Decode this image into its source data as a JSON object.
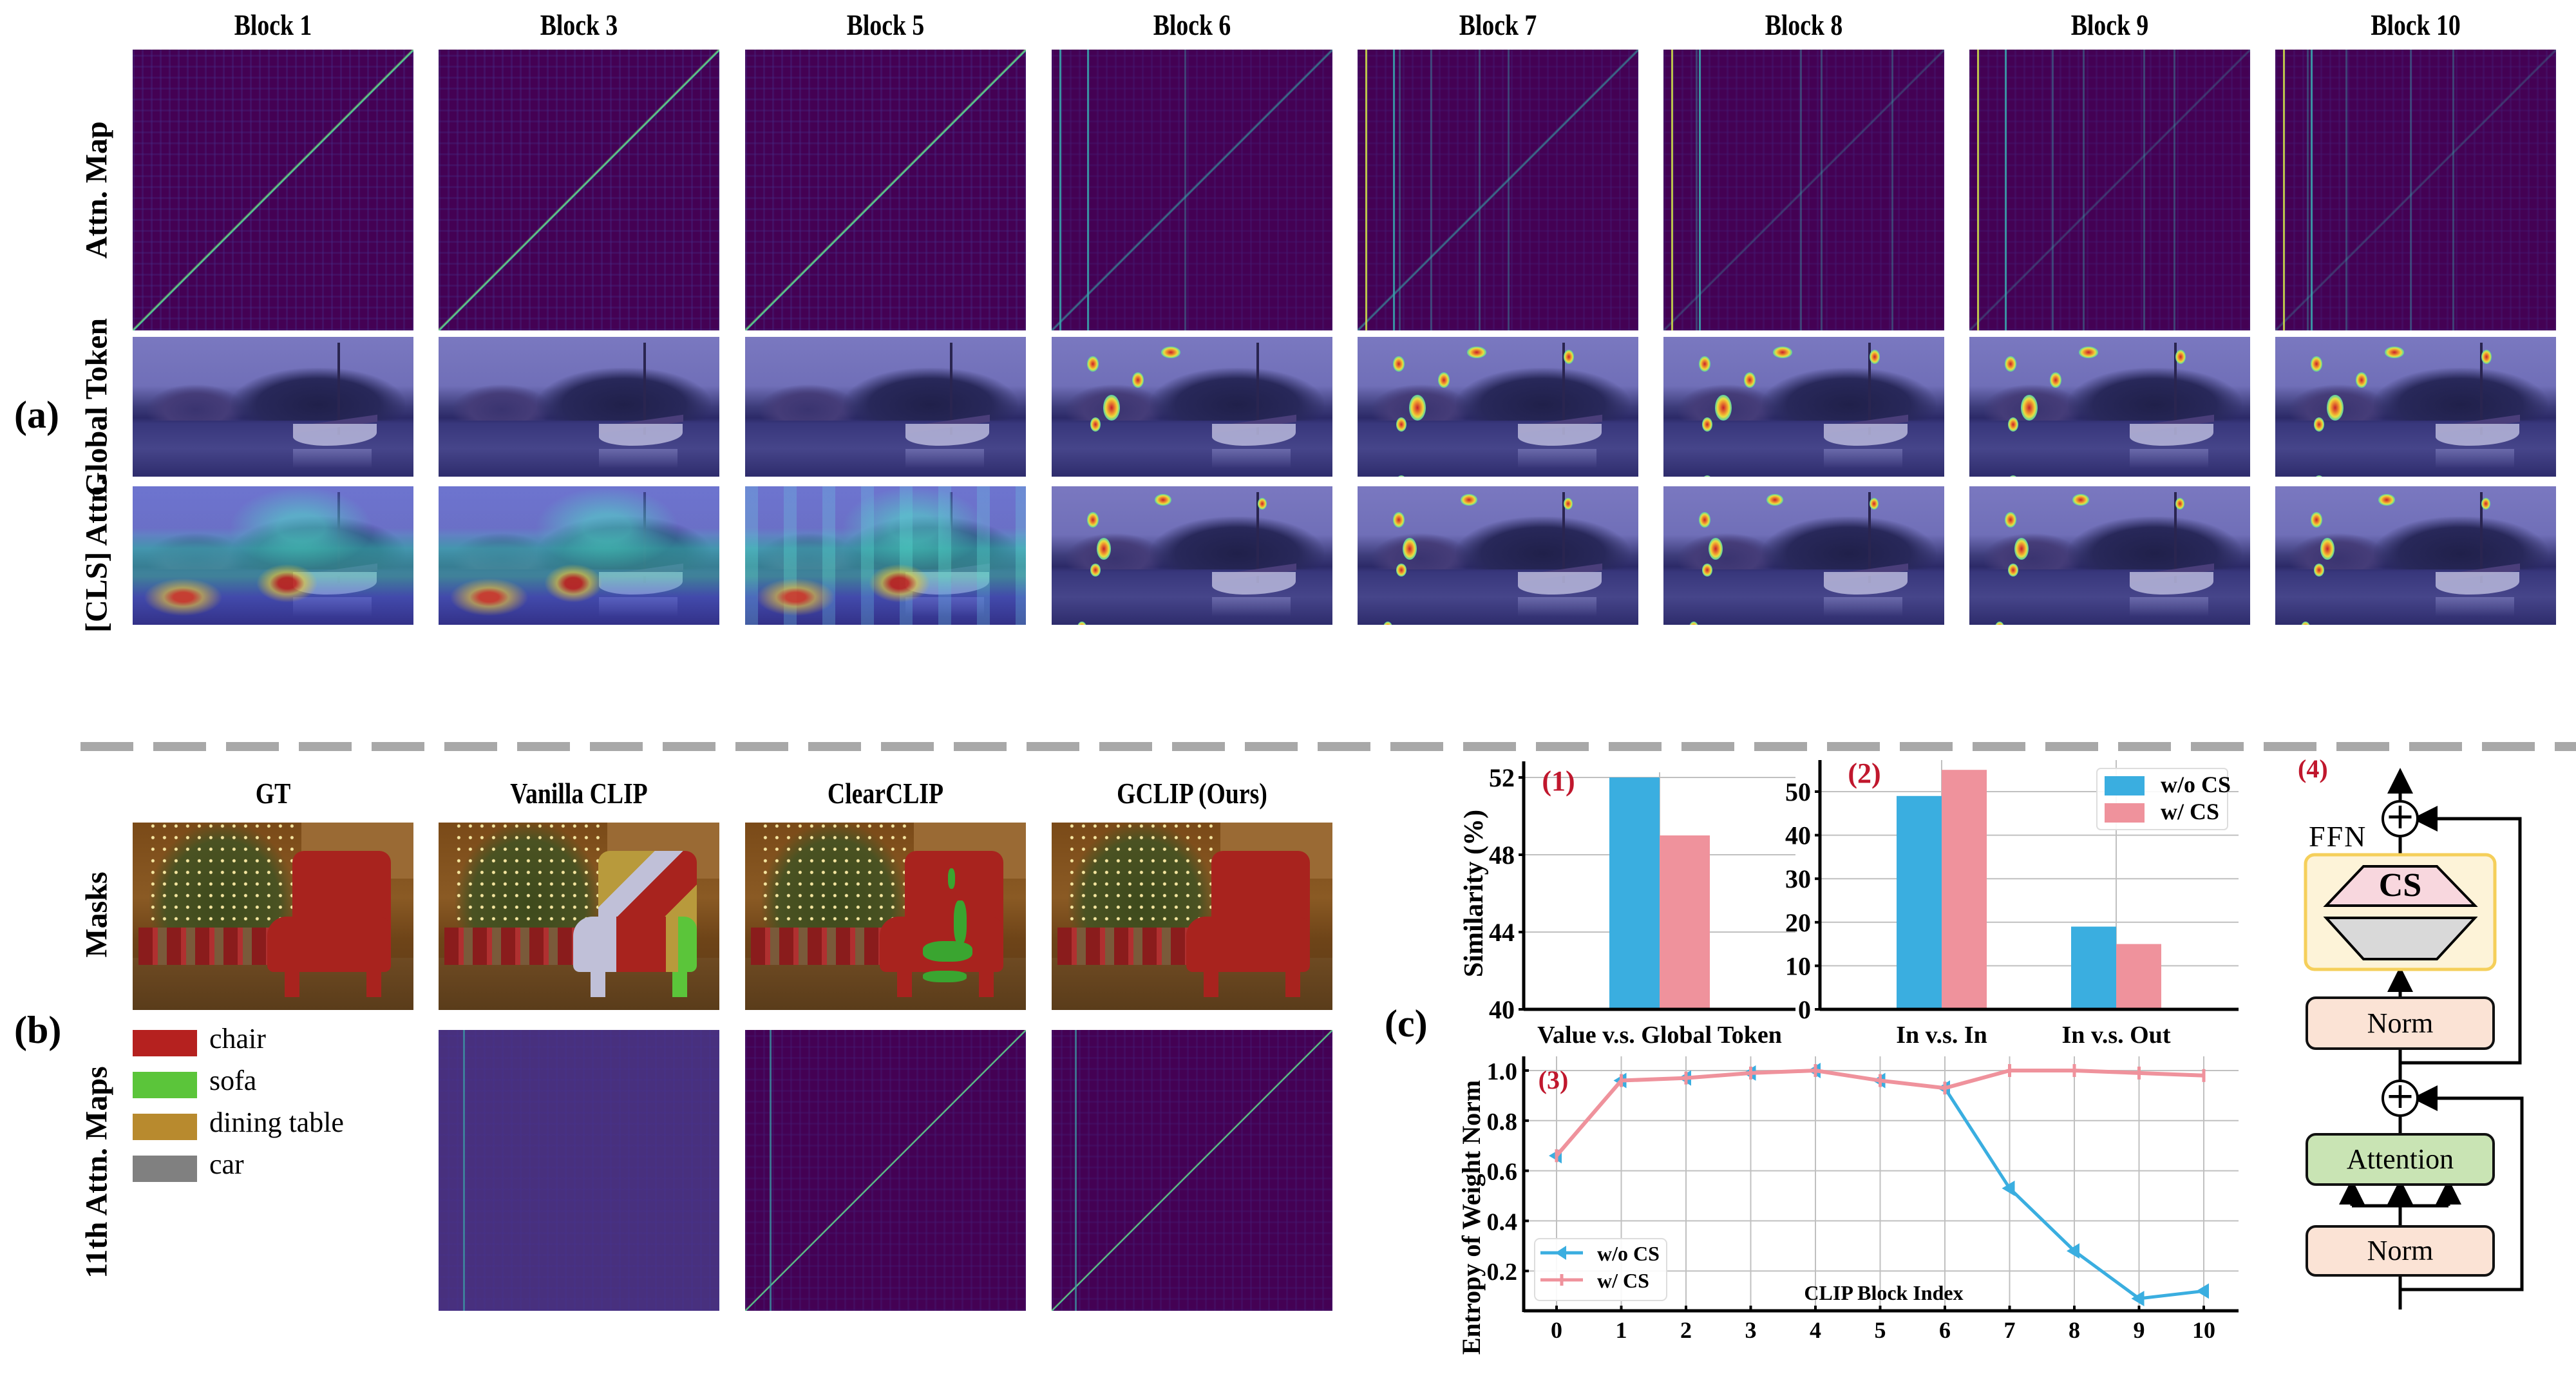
{
  "section_a": {
    "label": "(a)",
    "columns": [
      "Block 1",
      "Block 3",
      "Block 5",
      "Block 6",
      "Block 7",
      "Block 8",
      "Block 9",
      "Block 10"
    ],
    "rows": [
      "Attn. Map",
      "Global Token",
      "[CLS] Attn."
    ]
  },
  "section_b": {
    "label": "(b)",
    "columns": [
      "GT",
      "Vanilla CLIP",
      "ClearCLIP",
      "GCLIP (Ours)"
    ],
    "rows": [
      "Masks",
      "11th Attn. Maps"
    ],
    "legend": [
      {
        "label": "chair",
        "color": "#b5211f"
      },
      {
        "label": "sofa",
        "color": "#5bc53a"
      },
      {
        "label": "dining table",
        "color": "#b88a2e"
      },
      {
        "label": "car",
        "color": "#808080"
      }
    ]
  },
  "section_c": {
    "label": "(c)"
  },
  "chart_data": [
    {
      "id": "(1)",
      "type": "bar",
      "title": "(1)",
      "categories": [
        "Value v.s. Global Token"
      ],
      "series": [
        {
          "name": "w/o CS",
          "values": [
            52.0
          ],
          "color": "#3aaee0"
        },
        {
          "name": "w/ CS",
          "values": [
            49.0
          ],
          "color": "#ef929c"
        }
      ],
      "ylabel": "Similarity (%)",
      "xlabel": "",
      "ylim": [
        40,
        52
      ],
      "yticks": [
        40,
        44,
        48,
        52
      ],
      "grid": true
    },
    {
      "id": "(2)",
      "type": "bar",
      "title": "(2)",
      "categories": [
        "In v.s. In",
        "In v.s. Out"
      ],
      "series": [
        {
          "name": "w/o CS",
          "values": [
            49,
            19
          ],
          "color": "#3aaee0"
        },
        {
          "name": "w/ CS",
          "values": [
            55,
            15
          ],
          "color": "#ef929c"
        }
      ],
      "ylabel": "",
      "xlabel": "",
      "ylim": [
        0,
        57
      ],
      "yticks": [
        0,
        10,
        20,
        30,
        40,
        50
      ],
      "legend_position": "top-right",
      "grid": true
    },
    {
      "id": "(3)",
      "type": "line",
      "title": "(3)",
      "x": [
        0,
        1,
        2,
        3,
        4,
        5,
        6,
        7,
        8,
        9,
        10
      ],
      "series": [
        {
          "name": "w/o CS",
          "marker": "triangle-left",
          "color": "#3aaee0",
          "values": [
            0.66,
            0.96,
            0.97,
            0.99,
            1.0,
            0.96,
            0.93,
            0.53,
            0.28,
            0.09,
            0.12
          ]
        },
        {
          "name": "w/ CS",
          "marker": "plus",
          "color": "#ef929c",
          "values": [
            0.66,
            0.96,
            0.97,
            0.99,
            1.0,
            0.96,
            0.93,
            1.0,
            1.0,
            0.99,
            0.98
          ]
        }
      ],
      "ylabel": "Entropy of Weight Norm",
      "xlabel": "CLIP Block Index",
      "ylim": [
        0.04,
        1.05
      ],
      "xlim": [
        -0.5,
        10.5
      ],
      "yticks": [
        0.2,
        0.4,
        0.6,
        0.8,
        1.0
      ],
      "ytick_labels": [
        "0.2",
        "0.4",
        "0.6",
        "0.8",
        "1.0"
      ],
      "xticks": [
        0,
        1,
        2,
        3,
        4,
        5,
        6,
        7,
        8,
        9,
        10
      ],
      "legend_position": "bottom-left",
      "grid": true
    }
  ],
  "diagram": {
    "label": "(4)",
    "ffn_label": "FFN",
    "cs_label": "CS",
    "norm_label": "Norm",
    "attention_label": "Attention",
    "plus_symbol": "+",
    "colors": {
      "ffn_fill": "#fdf3d8",
      "ffn_border": "#f5cf5a",
      "cs_fill": "#f8d7de",
      "proj_fill": "#d9d9d9",
      "norm_fill": "#fbe3d5",
      "attn_fill": "#c9e4b4"
    }
  },
  "colors": {
    "panel_label_red": "#c0172d",
    "viridis_bg": "#440154",
    "separator": "#a8a8a8"
  }
}
